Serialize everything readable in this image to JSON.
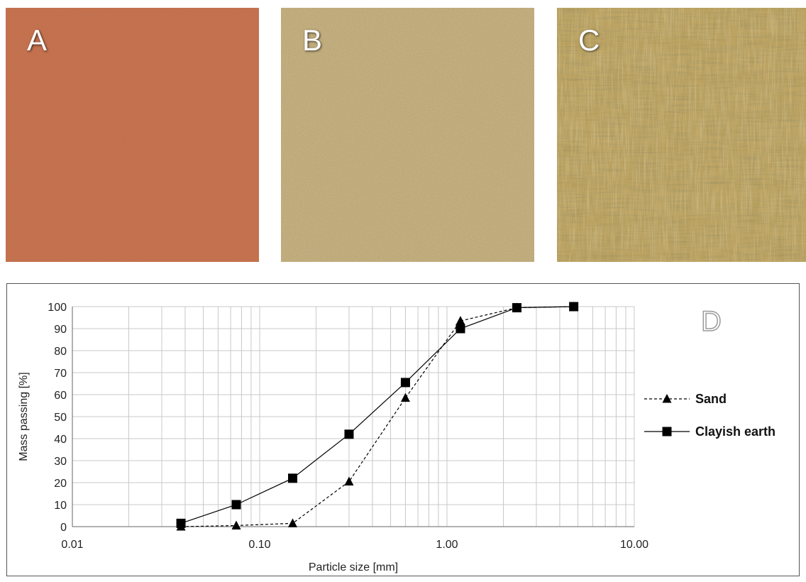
{
  "panels": {
    "a": {
      "letter": "A",
      "color": "#c76a45"
    },
    "b": {
      "letter": "B",
      "color": "#c9b27a"
    },
    "c": {
      "letter": "C",
      "color": "#b89a55"
    },
    "d": {
      "letter": "D"
    }
  },
  "chart_data": {
    "type": "line",
    "xlabel": "Particle size  [mm]",
    "ylabel": "Mass passing [%]",
    "x_scale": "log",
    "xlim": [
      0.01,
      10
    ],
    "ylim": [
      0,
      100
    ],
    "x_ticks": [
      "0.01",
      "0.10",
      "1.00",
      "10.00"
    ],
    "y_ticks": [
      0,
      10,
      20,
      30,
      40,
      50,
      60,
      70,
      80,
      90,
      100
    ],
    "grid": true,
    "legend_position": "right",
    "series": [
      {
        "name": "Sand",
        "marker": "triangle",
        "line": "dashed",
        "x": [
          0.038,
          0.075,
          0.15,
          0.3,
          0.6,
          1.18,
          2.36,
          4.75
        ],
        "y": [
          0,
          0.5,
          1.5,
          20.5,
          58.5,
          93.5,
          99.5,
          100
        ]
      },
      {
        "name": "Clayish earth",
        "marker": "square",
        "line": "solid",
        "x": [
          0.038,
          0.075,
          0.15,
          0.3,
          0.6,
          1.18,
          2.36,
          4.75
        ],
        "y": [
          1.5,
          10,
          22,
          42,
          65.5,
          90,
          99.5,
          100
        ]
      }
    ]
  }
}
